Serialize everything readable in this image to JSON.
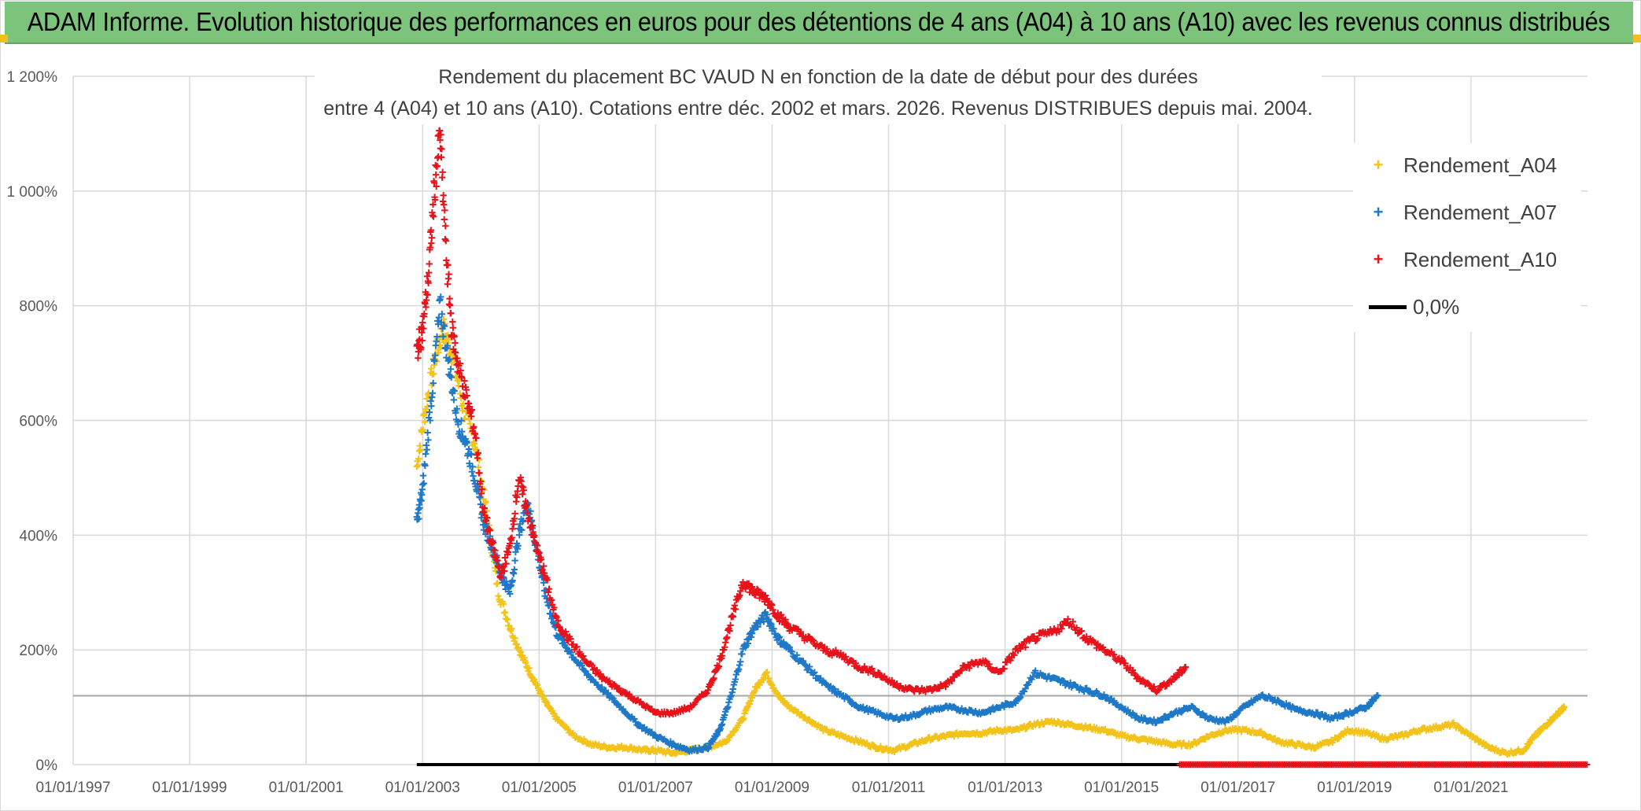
{
  "banner": {
    "title": "ADAM Informe. Evolution historique des performances en euros pour des détentions de 4 ans (A04) à 10 ans (A10) avec les revenus connus distribués"
  },
  "chart_data": {
    "type": "scatter",
    "title_line1": "Rendement du placement BC VAUD N en fonction de la date de début pour des durées",
    "title_line2": "entre 4 (A04) et 10 ans (A10). Cotations entre déc. 2002 et mars. 2026. Revenus DISTRIBUES depuis mai. 2004.",
    "xlim": [
      1997.0,
      2023.0
    ],
    "ylim": [
      0,
      1200
    ],
    "x_tick_labels": [
      "01/01/1997",
      "01/01/1999",
      "01/01/2001",
      "01/01/2003",
      "01/01/2005",
      "01/01/2007",
      "01/01/2009",
      "01/01/2011",
      "01/01/2013",
      "01/01/2015",
      "01/01/2017",
      "01/01/2019",
      "01/01/2021"
    ],
    "x_tick_values": [
      1997,
      1999,
      2001,
      2003,
      2005,
      2007,
      2009,
      2011,
      2013,
      2015,
      2017,
      2019,
      2021
    ],
    "y_tick_labels": [
      "0%",
      "200%",
      "400%",
      "600%",
      "800%",
      "1 000%",
      "1 200%"
    ],
    "y_tick_values": [
      0,
      200,
      400,
      600,
      800,
      1000,
      1200
    ],
    "reference_line_y": 120,
    "grid": true,
    "legend_position": "top-right",
    "series": [
      {
        "name": "Rendement_A04",
        "color": "#f2c31b",
        "marker": "+",
        "x": [
          2002.9,
          2003.05,
          2003.2,
          2003.35,
          2003.5,
          2003.7,
          2003.9,
          2004.1,
          2004.3,
          2004.5,
          2004.7,
          2004.9,
          2005.1,
          2005.3,
          2005.6,
          2005.9,
          2006.2,
          2006.5,
          2006.8,
          2007.0,
          2007.3,
          2007.6,
          2007.9,
          2008.2,
          2008.5,
          2008.7,
          2008.9,
          2009.1,
          2009.3,
          2009.6,
          2009.9,
          2010.2,
          2010.5,
          2010.8,
          2011.1,
          2011.4,
          2011.7,
          2012.0,
          2012.3,
          2012.6,
          2012.9,
          2013.2,
          2013.5,
          2013.8,
          2014.1,
          2014.4,
          2014.7,
          2015.0,
          2015.3,
          2015.6,
          2015.9,
          2016.2,
          2016.5,
          2016.8,
          2017.1,
          2017.4,
          2017.7,
          2018.0,
          2018.3,
          2018.6,
          2018.9,
          2019.2,
          2019.5,
          2019.8,
          2020.1,
          2020.4,
          2020.7,
          2021.0,
          2021.3,
          2021.6,
          2021.9,
          2022.1,
          2022.3,
          2022.5,
          2022.6
        ],
        "y": [
          520,
          620,
          700,
          760,
          720,
          620,
          560,
          440,
          300,
          240,
          190,
          150,
          110,
          80,
          50,
          35,
          30,
          30,
          25,
          25,
          20,
          25,
          30,
          40,
          80,
          130,
          160,
          120,
          100,
          80,
          60,
          50,
          40,
          30,
          25,
          35,
          45,
          50,
          55,
          55,
          60,
          60,
          70,
          75,
          70,
          65,
          60,
          50,
          45,
          40,
          35,
          35,
          50,
          60,
          60,
          55,
          40,
          35,
          30,
          40,
          60,
          55,
          45,
          50,
          60,
          65,
          70,
          50,
          30,
          20,
          25,
          50,
          70,
          90,
          100
        ]
      },
      {
        "name": "Rendement_A07",
        "color": "#1f78c8",
        "marker": "+",
        "x": [
          2002.9,
          2003.0,
          2003.15,
          2003.3,
          2003.45,
          2003.6,
          2003.75,
          2003.9,
          2004.05,
          2004.2,
          2004.35,
          2004.5,
          2004.65,
          2004.8,
          2004.95,
          2005.1,
          2005.3,
          2005.5,
          2005.8,
          2006.1,
          2006.4,
          2006.7,
          2007.0,
          2007.3,
          2007.6,
          2007.9,
          2008.1,
          2008.3,
          2008.5,
          2008.7,
          2008.9,
          2009.1,
          2009.3,
          2009.6,
          2009.9,
          2010.2,
          2010.5,
          2010.8,
          2011.1,
          2011.4,
          2011.7,
          2012.0,
          2012.3,
          2012.6,
          2012.9,
          2013.2,
          2013.5,
          2013.8,
          2014.1,
          2014.4,
          2014.7,
          2015.0,
          2015.3,
          2015.6,
          2015.9,
          2016.2,
          2016.5,
          2016.8,
          2017.1,
          2017.4,
          2017.7,
          2018.0,
          2018.3,
          2018.6,
          2018.9,
          2019.2,
          2019.4
        ],
        "y": [
          420,
          480,
          640,
          800,
          700,
          600,
          560,
          500,
          420,
          380,
          330,
          300,
          400,
          460,
          380,
          300,
          230,
          200,
          160,
          130,
          100,
          70,
          50,
          35,
          25,
          30,
          60,
          120,
          200,
          240,
          260,
          220,
          200,
          170,
          140,
          120,
          100,
          90,
          80,
          85,
          95,
          100,
          95,
          90,
          100,
          110,
          160,
          150,
          140,
          130,
          120,
          100,
          80,
          75,
          90,
          100,
          80,
          75,
          100,
          120,
          110,
          95,
          90,
          80,
          90,
          100,
          120
        ]
      },
      {
        "name": "Rendement_A10",
        "color": "#e8121b",
        "marker": "+",
        "x": [
          2002.9,
          2003.0,
          2003.1,
          2003.2,
          2003.3,
          2003.4,
          2003.5,
          2003.6,
          2003.75,
          2003.9,
          2004.05,
          2004.2,
          2004.35,
          2004.5,
          2004.65,
          2004.8,
          2004.95,
          2005.1,
          2005.3,
          2005.5,
          2005.8,
          2006.1,
          2006.4,
          2006.7,
          2007.0,
          2007.3,
          2007.6,
          2007.9,
          2008.1,
          2008.3,
          2008.5,
          2008.7,
          2008.9,
          2009.1,
          2009.3,
          2009.6,
          2009.9,
          2010.2,
          2010.5,
          2010.8,
          2011.1,
          2011.4,
          2011.7,
          2012.0,
          2012.3,
          2012.6,
          2012.9,
          2013.2,
          2013.5,
          2013.8,
          2014.1,
          2014.4,
          2014.7,
          2015.0,
          2015.3,
          2015.6,
          2015.9,
          2016.1
        ],
        "y": [
          720,
          760,
          850,
          1000,
          1100,
          900,
          760,
          700,
          640,
          580,
          440,
          380,
          330,
          380,
          500,
          440,
          380,
          330,
          250,
          220,
          180,
          150,
          130,
          110,
          90,
          90,
          100,
          130,
          180,
          250,
          320,
          300,
          290,
          260,
          240,
          220,
          200,
          190,
          170,
          160,
          140,
          130,
          130,
          140,
          170,
          180,
          160,
          200,
          220,
          230,
          250,
          220,
          200,
          180,
          150,
          130,
          150,
          170
        ]
      }
    ]
  }
}
